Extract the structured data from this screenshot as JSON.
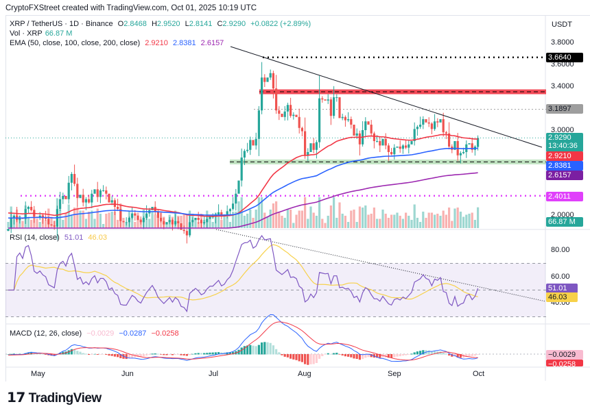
{
  "credit": "CryptoFXStreet created with TradingView.com, Oct 01, 2025 10:19 UTC",
  "legend": {
    "symbol": "XRP / TetherUS · 1D · Binance",
    "o_label": "O",
    "o": "2.8468",
    "h_label": "H",
    "h": "2.9520",
    "l_label": "L",
    "l": "2.8141",
    "c_label": "C",
    "c": "2.9290",
    "change": "+0.0822 (+2.89%)",
    "vol_label": "Vol · XRP",
    "vol": "66.87 M",
    "ema_label": "EMA (50, close, 100, close, 200, close)",
    "ema50": "2.9210",
    "ema100": "2.8381",
    "ema200": "2.6157"
  },
  "rsi_legend": {
    "label": "RSI (14, close)",
    "rsi": "51.01",
    "ma": "46.03"
  },
  "macd_legend": {
    "label": "MACD (12, 26, close)",
    "hist": "−0.0029",
    "macd": "−0.0287",
    "signal": "−0.0258"
  },
  "axis": {
    "currency": "USDT",
    "price_ticks": [
      "3.8000",
      "3.6000",
      "3.4000",
      "3.0000",
      "2.0000"
    ],
    "rsi_ticks": [
      "80.00",
      "60.00",
      "40.00"
    ],
    "time_ticks": [
      "May",
      "Jun",
      "Jul",
      "Aug",
      "Sep",
      "Oct"
    ]
  },
  "tags": {
    "high": "3.6640",
    "level": "3.1897",
    "last": "2.9290",
    "countdown": "13:40:36",
    "ema50": "2.9210",
    "ema100": "2.8381",
    "ema200": "2.6157",
    "support": "2.4011",
    "vol": "66.87 M",
    "rsi": "51.01",
    "rsi_ma": "46.03",
    "macd_hist": "−0.0029",
    "macd_signal": "−0.0258"
  },
  "colors": {
    "up": "#26a69a",
    "down": "#ef5350",
    "ema50": "#f23645",
    "ema100": "#2962ff",
    "ema200": "#9c27b0",
    "rsi": "#7e57c2",
    "rsi_ma": "#f7d14a",
    "magenta": "#e040fb"
  },
  "chart_data": {
    "type": "candlestick",
    "x_range": [
      "2025-04-21",
      "2025-10-01"
    ],
    "last_candle": {
      "open": 2.8468,
      "high": 2.952,
      "low": 2.8141,
      "close": 2.929
    },
    "closes": [
      2.1,
      2.2,
      2.22,
      2.18,
      2.2,
      2.19,
      2.28,
      2.3,
      2.27,
      2.21,
      2.2,
      2.22,
      2.2,
      2.19,
      2.14,
      2.13,
      2.12,
      2.28,
      2.37,
      2.4,
      2.37,
      2.52,
      2.6,
      2.51,
      2.38,
      2.41,
      2.34,
      2.37,
      2.34,
      2.42,
      2.46,
      2.39,
      2.45,
      2.45,
      2.42,
      2.34,
      2.36,
      2.3,
      2.28,
      2.17,
      2.16,
      2.16,
      2.2,
      2.24,
      2.22,
      2.18,
      2.16,
      2.2,
      2.24,
      2.27,
      2.3,
      2.26,
      2.2,
      2.17,
      2.14,
      2.16,
      2.18,
      2.14,
      2.17,
      2.15,
      2.09,
      2.08,
      2.04,
      2.16,
      2.18,
      2.2,
      2.18,
      2.15,
      2.16,
      2.19,
      2.21,
      2.21,
      2.23,
      2.25,
      2.22,
      2.23,
      2.26,
      2.28,
      2.33,
      2.42,
      2.54,
      2.75,
      2.81,
      2.82,
      2.91,
      2.86,
      2.92,
      3.18,
      3.48,
      3.44,
      3.48,
      3.52,
      3.38,
      3.18,
      3.15,
      3.12,
      3.17,
      3.23,
      3.13,
      3.14,
      3.12,
      3.02,
      2.99,
      2.77,
      2.8,
      2.88,
      2.82,
      2.89,
      3.29,
      3.28,
      3.27,
      3.28,
      3.13,
      3.3,
      3.3,
      3.11,
      3.12,
      3.09,
      3.1,
      3.05,
      2.95,
      2.97,
      2.87,
      3.0,
      3.08,
      3.05,
      2.97,
      2.9,
      2.9,
      2.86,
      2.92,
      2.86,
      2.8,
      2.78,
      2.84,
      2.85,
      2.83,
      2.86,
      2.84,
      2.87,
      2.9,
      3.01,
      3.03,
      3.05,
      3.1,
      3.07,
      3.06,
      3.01,
      3.08,
      3.07,
      3.1,
      2.98,
      2.97,
      2.85,
      2.82,
      2.9,
      2.77,
      2.79,
      2.8,
      2.87,
      2.88,
      2.82,
      2.85,
      2.929
    ],
    "horizontal_levels": [
      {
        "price": 3.664,
        "style": "dotted",
        "color": "#000000"
      },
      {
        "price": 3.35,
        "style": "band",
        "color": "#f23645"
      },
      {
        "price": 3.1897,
        "style": "dotted",
        "color": "#9e9e9e"
      },
      {
        "price": 2.71,
        "style": "band",
        "color": "#4caf50"
      },
      {
        "price": 2.4011,
        "style": "dotted",
        "color": "#e040fb"
      }
    ],
    "price_range": [
      2.12,
      3.85
    ],
    "rsi_range": [
      30,
      90
    ]
  }
}
